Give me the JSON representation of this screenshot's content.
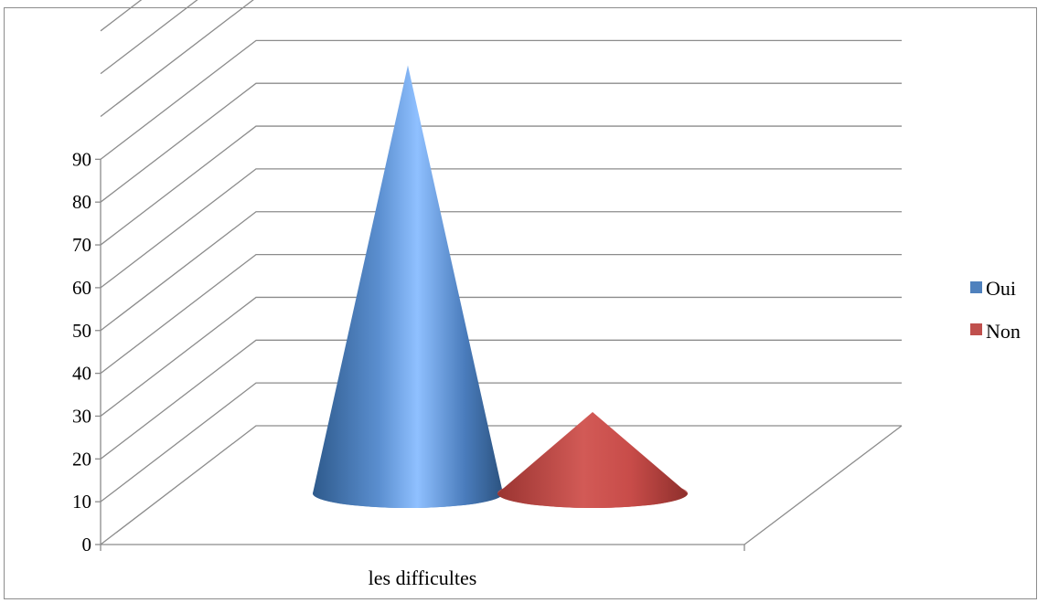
{
  "chart_data": {
    "type": "bar",
    "style": "3d-cone",
    "categories": [
      "les difficultes"
    ],
    "series": [
      {
        "name": "Oui",
        "values": [
          100
        ],
        "color": "#4f81bd"
      },
      {
        "name": "Non",
        "values": [
          19
        ],
        "color": "#c0504d"
      }
    ],
    "yticks": [
      "0",
      "10",
      "20",
      "30",
      "40",
      "50",
      "60",
      "70",
      "80",
      "90"
    ],
    "ylim": [
      0,
      120
    ],
    "grid": true,
    "legend": "right"
  }
}
